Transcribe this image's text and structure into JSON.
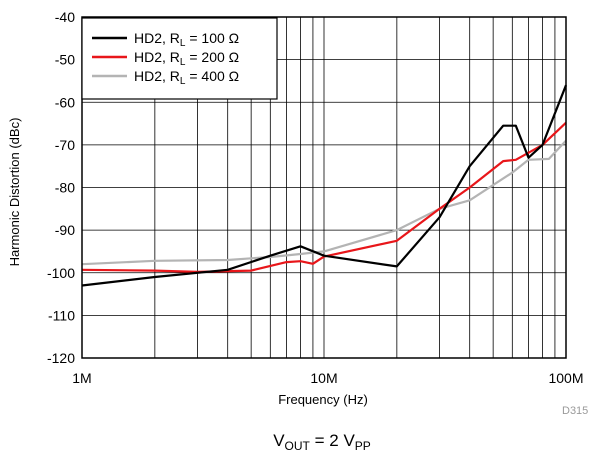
{
  "chart_data": {
    "type": "line",
    "xlabel": "Frequency (Hz)",
    "ylabel": "Harmonic Distortion (dBc)",
    "x_scale": "log",
    "xlim": [
      1000000,
      100000000
    ],
    "ylim": [
      -120,
      -40
    ],
    "x_ticks": [
      {
        "value": 1000000,
        "label": "1M"
      },
      {
        "value": 10000000,
        "label": "10M"
      },
      {
        "value": 100000000,
        "label": "100M"
      }
    ],
    "y_ticks": [
      -40,
      -50,
      -60,
      -70,
      -80,
      -90,
      -100,
      -110,
      -120
    ],
    "grid": true,
    "legend_position": "top-left",
    "series": [
      {
        "name_main": "HD2, R",
        "name_sub": "L",
        "name_rest": " = 100 Ω",
        "color": "#000000",
        "x": [
          1000000,
          2000000,
          4000000,
          6000000,
          8000000,
          10000000,
          20000000,
          30000000,
          40000000,
          55000000,
          62000000,
          70000000,
          80000000,
          100000000
        ],
        "y": [
          -103,
          -101,
          -99.3,
          -96,
          -93.8,
          -96,
          -98.5,
          -87,
          -75,
          -65.5,
          -65.5,
          -73,
          -70,
          -56
        ]
      },
      {
        "name_main": "HD2, R",
        "name_sub": "L",
        "name_rest": " = 200 Ω",
        "color": "#e8161a",
        "x": [
          1000000,
          2000000,
          3000000,
          5000000,
          7000000,
          8000000,
          9000000,
          10000000,
          20000000,
          30000000,
          40000000,
          55000000,
          62000000,
          80000000,
          100000000
        ],
        "y": [
          -99.3,
          -99.5,
          -99.8,
          -99.5,
          -97.5,
          -97.3,
          -97.9,
          -96.2,
          -92.5,
          -85,
          -80,
          -73.8,
          -73.5,
          -70,
          -64.8
        ]
      },
      {
        "name_main": "HD2, R",
        "name_sub": "L",
        "name_rest": " = 400 Ω",
        "color": "#b4b4b4",
        "x": [
          1000000,
          2000000,
          4000000,
          6000000,
          8000000,
          10000000,
          20000000,
          30000000,
          40000000,
          60000000,
          70000000,
          85000000,
          100000000
        ],
        "y": [
          -98,
          -97.2,
          -97,
          -96.3,
          -95.6,
          -95,
          -90,
          -85,
          -83,
          -76.5,
          -73.5,
          -73.3,
          -69
        ]
      }
    ],
    "figure_id": "D315",
    "caption": {
      "v": "V",
      "out": "OUT",
      "mid": " = 2 V",
      "pp": "PP"
    }
  }
}
